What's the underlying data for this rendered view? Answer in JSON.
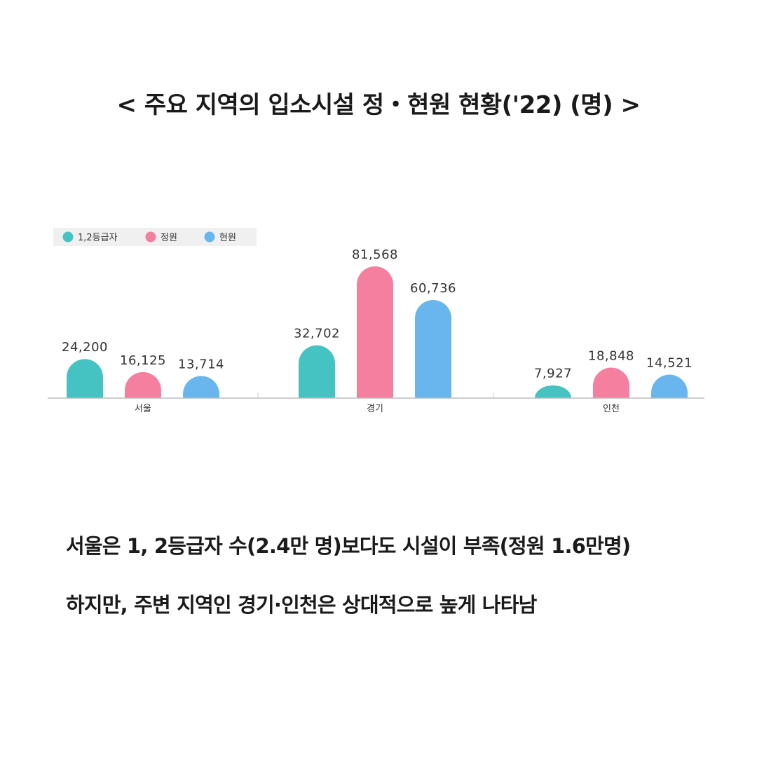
{
  "title": "< 주요 지역의 입소시설 정・현원 현황('22) (명) >",
  "chart_data": {
    "type": "bar",
    "categories": [
      "서울",
      "경기",
      "인천"
    ],
    "series": [
      {
        "name": "1,2등급자",
        "color": "#45c3c2",
        "values": [
          24200,
          32702,
          7927
        ],
        "labels": [
          "24,200",
          "32,702",
          "7,927"
        ]
      },
      {
        "name": "정원",
        "color": "#f47f9f",
        "values": [
          16125,
          81568,
          18848
        ],
        "labels": [
          "16,125",
          "81,568",
          "18,848"
        ]
      },
      {
        "name": "현원",
        "color": "#68b6ed",
        "values": [
          13714,
          60736,
          14521
        ],
        "labels": [
          "13,714",
          "60,736",
          "14,521"
        ]
      }
    ],
    "legend_position": "top-left",
    "ylim": [
      0,
      81568
    ]
  },
  "captions": [
    "서울은 1, 2등급자 수(2.4만 명)보다도 시설이 부족(정원 1.6만명)",
    "하지만, 주변 지역인 경기·인천은 상대적으로 높게 나타남"
  ]
}
